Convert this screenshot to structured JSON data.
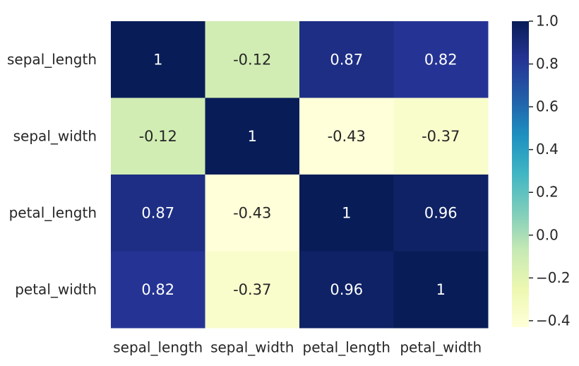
{
  "chart_data": {
    "type": "heatmap",
    "title": "",
    "xlabel": "",
    "ylabel": "",
    "x_categories": [
      "sepal_length",
      "sepal_width",
      "petal_length",
      "petal_width"
    ],
    "y_categories": [
      "sepal_length",
      "sepal_width",
      "petal_length",
      "petal_width"
    ],
    "values": [
      [
        1,
        -0.12,
        0.87,
        0.82
      ],
      [
        -0.12,
        1,
        -0.43,
        -0.37
      ],
      [
        0.87,
        -0.43,
        1,
        0.96
      ],
      [
        0.82,
        -0.37,
        0.96,
        1
      ]
    ],
    "annotations": [
      [
        "1",
        "-0.12",
        "0.87",
        "0.82"
      ],
      [
        "-0.12",
        "1",
        "-0.43",
        "-0.37"
      ],
      [
        "0.87",
        "-0.43",
        "1",
        "0.96"
      ],
      [
        "0.82",
        "-0.37",
        "0.96",
        "1"
      ]
    ],
    "colormap": "YlGnBu",
    "vmin": -0.43,
    "vmax": 1.0,
    "colorbar": {
      "ticks": [
        1.0,
        0.8,
        0.6,
        0.4,
        0.2,
        0.0,
        -0.2,
        -0.4
      ],
      "tick_labels": [
        "1.0",
        "0.8",
        "0.6",
        "0.4",
        "0.2",
        "0.0",
        "−0.2",
        "−0.4"
      ]
    },
    "grid": false,
    "legend": "colorbar-right"
  }
}
